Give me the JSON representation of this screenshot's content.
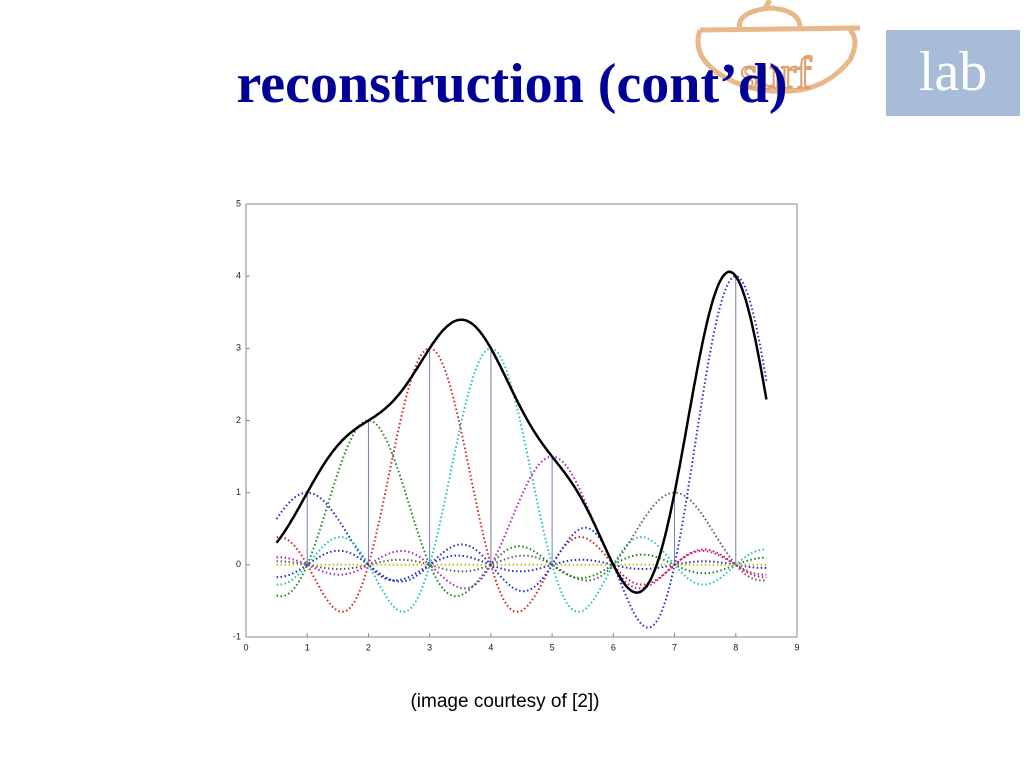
{
  "slide": {
    "title": "reconstruction (cont’d)",
    "caption": "(image courtesy of [2])",
    "logo": {
      "left": "surf",
      "right": "lab"
    }
  },
  "chart_data": {
    "type": "stem",
    "x": [
      1,
      2,
      3,
      4,
      5,
      6,
      7,
      8
    ],
    "values": [
      1,
      2,
      3,
      3,
      1.5,
      0,
      1,
      4
    ],
    "colors": [
      "#1a2ecc",
      "#1a8a1a",
      "#d42020",
      "#20c0c0",
      "#b020c0",
      "#c8c020",
      "#606060",
      "#2030d0"
    ],
    "reconstruction_color": "#000000",
    "stem_color": "#7080b0",
    "xlim": [
      0,
      9
    ],
    "ylim": [
      -1,
      5
    ],
    "xticks": [
      0,
      1,
      2,
      3,
      4,
      5,
      6,
      7,
      8,
      9
    ],
    "yticks": [
      -1,
      0,
      1,
      2,
      3,
      4,
      5
    ]
  }
}
